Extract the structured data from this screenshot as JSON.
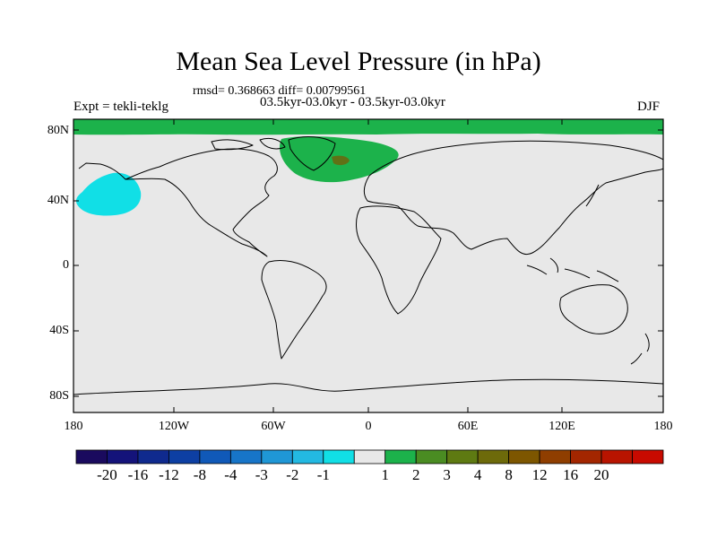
{
  "title": "Mean Sea Level Pressure (in hPa)",
  "stats_line": "rmsd= 0.368663 diff= 0.00799561",
  "subtitle": "03.5kyr-03.0kyr - 03.5kyr-03.0kyr",
  "expt_label": "Expt = tekli-teklg",
  "season": "DJF",
  "lat_labels": [
    "80N",
    "40N",
    "0",
    "40S",
    "80S"
  ],
  "lon_labels": [
    "180",
    "120W",
    "60W",
    "0",
    "60E",
    "120E",
    "180"
  ],
  "colorbar": {
    "colors": [
      "#1a0a5e",
      "#14137a",
      "#0f2a8e",
      "#0d3fa3",
      "#1059b8",
      "#1775c8",
      "#1f97d6",
      "#23b9e2",
      "#11dfe6",
      "#e8e8e8",
      "#1cb24b",
      "#4a8c22",
      "#5e7a12",
      "#6d6a0a",
      "#7d5600",
      "#8f3e00",
      "#a32600",
      "#b81400",
      "#c80a00"
    ],
    "labels": [
      "-20",
      "-16",
      "-12",
      "-8",
      "-4",
      "-3",
      "-2",
      "-1",
      "1",
      "2",
      "3",
      "4",
      "8",
      "12",
      "16",
      "20"
    ]
  },
  "colors": {
    "background_field": "#e8e8e8",
    "positive_anomaly": "#1cb24b",
    "negative_anomaly": "#11dfe6",
    "strong_positive": "#7d5600"
  }
}
